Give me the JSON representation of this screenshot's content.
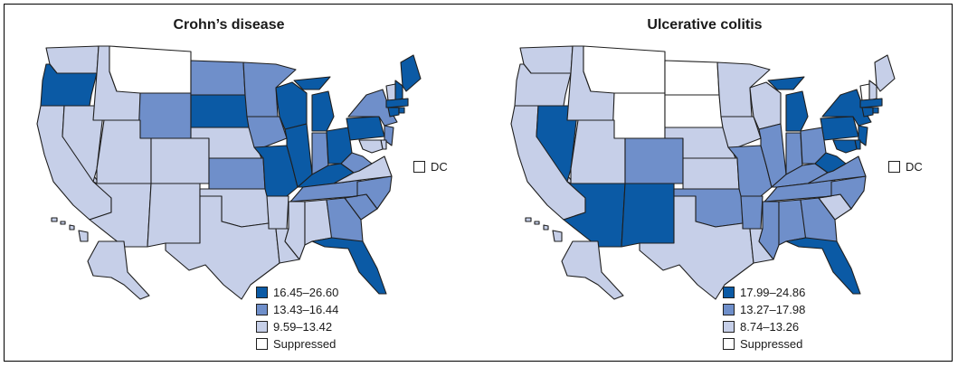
{
  "colors": {
    "dark": "#0b5aa5",
    "medium": "#6f8fca",
    "light": "#c6cfe8",
    "suppressed": "#ffffff"
  },
  "maps": [
    {
      "title": "Crohn’s disease",
      "dc_label": "DC",
      "dc_class": "suppressed",
      "legend": [
        {
          "label": "16.45–26.60",
          "class": "dark"
        },
        {
          "label": "13.43–16.44",
          "class": "medium"
        },
        {
          "label": "9.59–13.42",
          "class": "light"
        },
        {
          "label": "Suppressed",
          "class": "suppressed"
        }
      ],
      "states": {
        "WA": "light",
        "OR": "dark",
        "CA": "light",
        "NV": "light",
        "ID": "light",
        "MT": "suppressed",
        "WY": "medium",
        "UT": "light",
        "AZ": "light",
        "CO": "light",
        "NM": "light",
        "ND": "medium",
        "SD": "dark",
        "NE": "light",
        "KS": "medium",
        "OK": "light",
        "TX": "light",
        "MN": "medium",
        "IA": "medium",
        "MO": "dark",
        "AR": "light",
        "LA": "light",
        "WI": "dark",
        "IL": "dark",
        "MI": "dark",
        "IN": "medium",
        "OH": "dark",
        "KY": "dark",
        "TN": "medium",
        "MS": "light",
        "AL": "light",
        "GA": "medium",
        "FL": "dark",
        "SC": "medium",
        "NC": "medium",
        "VA": "light",
        "WV": "medium",
        "PA": "dark",
        "NY": "medium",
        "ME": "dark",
        "NH": "dark",
        "VT": "light",
        "MA": "dark",
        "CT": "dark",
        "RI": "dark",
        "NJ": "medium",
        "DE": "light",
        "MD": "light",
        "AK": "light",
        "HI": "light"
      }
    },
    {
      "title": "Ulcerative colitis",
      "dc_label": "DC",
      "dc_class": "suppressed",
      "legend": [
        {
          "label": "17.99–24.86",
          "class": "dark"
        },
        {
          "label": "13.27–17.98",
          "class": "medium"
        },
        {
          "label": "8.74–13.26",
          "class": "light"
        },
        {
          "label": "Suppressed",
          "class": "suppressed"
        }
      ],
      "states": {
        "WA": "light",
        "OR": "light",
        "CA": "light",
        "NV": "dark",
        "ID": "light",
        "MT": "suppressed",
        "WY": "suppressed",
        "UT": "light",
        "AZ": "dark",
        "CO": "medium",
        "NM": "dark",
        "ND": "suppressed",
        "SD": "suppressed",
        "NE": "light",
        "KS": "light",
        "OK": "medium",
        "TX": "light",
        "MN": "light",
        "IA": "light",
        "MO": "medium",
        "AR": "medium",
        "LA": "light",
        "WI": "light",
        "IL": "medium",
        "MI": "dark",
        "IN": "medium",
        "OH": "medium",
        "KY": "medium",
        "TN": "medium",
        "MS": "medium",
        "AL": "medium",
        "GA": "medium",
        "FL": "dark",
        "SC": "light",
        "NC": "medium",
        "VA": "medium",
        "WV": "dark",
        "PA": "dark",
        "NY": "dark",
        "ME": "light",
        "NH": "light",
        "VT": "suppressed",
        "MA": "dark",
        "CT": "dark",
        "RI": "dark",
        "NJ": "dark",
        "DE": "dark",
        "MD": "dark",
        "AK": "light",
        "HI": "light"
      }
    }
  ]
}
